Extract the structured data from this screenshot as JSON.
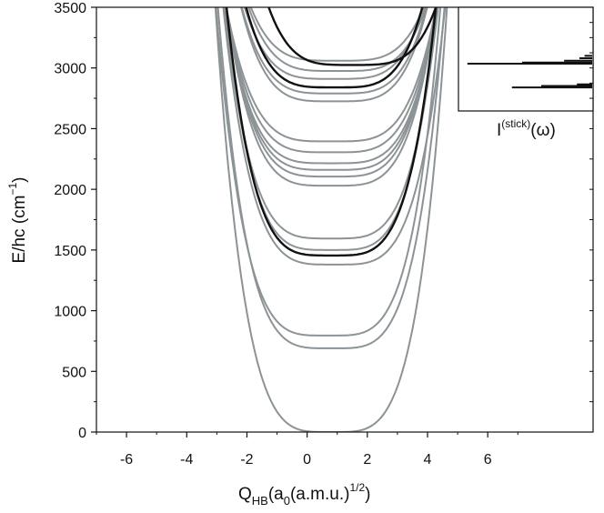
{
  "chart_data": {
    "type": "line",
    "title": "",
    "xlabel": {
      "main": "Q",
      "sub": "HB",
      "mid": "(a",
      "sub2": "0",
      "rest": "(a.m.u.)",
      "sup": "1/2",
      "end": ")"
    },
    "ylabel": {
      "main": "E/hc (cm",
      "sup": "−1",
      "end": ")"
    },
    "xlim": [
      -7,
      9.5
    ],
    "ylim": [
      0,
      3500
    ],
    "x_ticks": [
      -6,
      -4,
      -2,
      0,
      2,
      4,
      6
    ],
    "x_tick_labels": [
      "-6",
      "-4",
      "-2",
      "0",
      "2",
      "4",
      "6"
    ],
    "y_ticks": [
      0,
      500,
      1000,
      1500,
      2000,
      2500,
      3000,
      3500
    ],
    "y_tick_labels": [
      "0",
      "500",
      "1000",
      "1500",
      "2000",
      "2500",
      "3000",
      "3500"
    ],
    "grid": false,
    "colors": {
      "gray_curve": "#8c9396",
      "highlight_curve": "#111111"
    },
    "series": [
      {
        "min_x": 0.8,
        "min_y": 0,
        "k": 16.0,
        "color": "gray"
      },
      {
        "min_x": 0.8,
        "min_y": 690,
        "k": 14.0,
        "color": "gray"
      },
      {
        "min_x": 0.7,
        "min_y": 795,
        "k": 14.0,
        "color": "gray"
      },
      {
        "min_x": 0.9,
        "min_y": 1380,
        "k": 11.5,
        "color": "gray"
      },
      {
        "min_x": 0.8,
        "min_y": 1455,
        "k": 14.0,
        "color": "black"
      },
      {
        "min_x": 0.8,
        "min_y": 1500,
        "k": 13.0,
        "color": "gray"
      },
      {
        "min_x": 0.8,
        "min_y": 1595,
        "k": 12.0,
        "color": "gray"
      },
      {
        "min_x": 0.8,
        "min_y": 2030,
        "k": 10.0,
        "color": "gray"
      },
      {
        "min_x": 0.8,
        "min_y": 2105,
        "k": 9.5,
        "color": "gray"
      },
      {
        "min_x": 0.8,
        "min_y": 2160,
        "k": 9.0,
        "color": "gray"
      },
      {
        "min_x": 0.8,
        "min_y": 2215,
        "k": 8.5,
        "color": "gray"
      },
      {
        "min_x": 0.8,
        "min_y": 2305,
        "k": 8.0,
        "color": "gray"
      },
      {
        "min_x": 0.8,
        "min_y": 2395,
        "k": 7.5,
        "color": "gray"
      },
      {
        "min_x": 0.9,
        "min_y": 2725,
        "k": 8.5,
        "color": "gray"
      },
      {
        "min_x": 0.9,
        "min_y": 2790,
        "k": 8.0,
        "color": "gray"
      },
      {
        "min_x": 0.9,
        "min_y": 2840,
        "k": 9.0,
        "color": "black"
      },
      {
        "min_x": 0.9,
        "min_y": 2910,
        "k": 7.5,
        "color": "gray"
      },
      {
        "min_x": 1.0,
        "min_y": 2975,
        "k": 7.0,
        "color": "gray"
      },
      {
        "min_x": 1.5,
        "min_y": 3025,
        "k": 8.0,
        "color": "black"
      },
      {
        "min_x": 1.0,
        "min_y": 3060,
        "k": 6.5,
        "color": "gray"
      }
    ],
    "inset": {
      "label": {
        "main": "I",
        "sup": "(stick)",
        "end": "(ω)"
      },
      "sticks": [
        {
          "energy": 2840,
          "intensity": 0.63,
          "color": "black"
        },
        {
          "energy": 2852,
          "intensity": 0.4,
          "color": "black"
        },
        {
          "energy": 2865,
          "intensity": 0.12,
          "color": "black"
        },
        {
          "energy": 3035,
          "intensity": 0.98,
          "color": "black"
        },
        {
          "energy": 3045,
          "intensity": 0.55,
          "color": "black"
        },
        {
          "energy": 3060,
          "intensity": 0.22,
          "color": "black"
        },
        {
          "energy": 3080,
          "intensity": 0.1,
          "color": "black"
        },
        {
          "energy": 3100,
          "intensity": 0.06,
          "color": "black"
        }
      ]
    }
  }
}
